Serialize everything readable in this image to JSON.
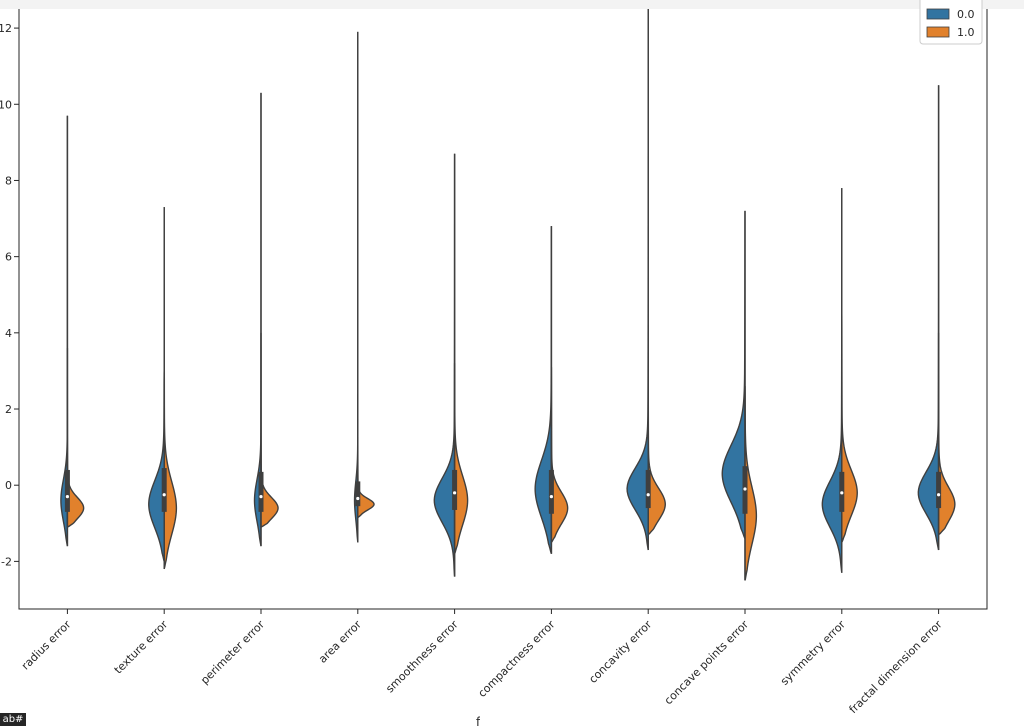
{
  "chart_data": {
    "type": "violin",
    "split": true,
    "title": "",
    "xlabel": "f",
    "ylabel": "",
    "ylim": [
      -3.25,
      13.0
    ],
    "yticks": [
      {
        "value": -2,
        "label": "-2"
      },
      {
        "value": 0,
        "label": "0"
      },
      {
        "value": 2,
        "label": "2"
      },
      {
        "value": 4,
        "label": "4"
      },
      {
        "value": 6,
        "label": "6"
      },
      {
        "value": 8,
        "label": "8"
      },
      {
        "value": 10,
        "label": "10"
      },
      {
        "value": 12,
        "label": "12"
      }
    ],
    "categories": [
      "radius error",
      "texture error",
      "perimeter error",
      "area error",
      "smoothness error",
      "compactness error",
      "concavity error",
      "concave points error",
      "symmetry error",
      "fractal dimension error"
    ],
    "legend": {
      "position": "top-right",
      "entries": [
        {
          "label": "0.0",
          "color": "#3274a1"
        },
        {
          "label": "1.0",
          "color": "#e1812c"
        }
      ]
    },
    "series": [
      {
        "label": "0.0",
        "color": "#3274a1",
        "side": "left",
        "violins": [
          {
            "min": -1.6,
            "max": 9.7,
            "mode": -0.4,
            "width": 0.08,
            "spread": 0.55,
            "q1": -0.7,
            "median": -0.3,
            "q3": 0.4
          },
          {
            "min": -2.0,
            "max": 3.0,
            "mode": -0.5,
            "width": 0.19,
            "spread": 0.62,
            "q1": -0.7,
            "median": -0.25,
            "q3": 0.45
          },
          {
            "min": -1.6,
            "max": 10.3,
            "mode": -0.4,
            "width": 0.08,
            "spread": 0.55,
            "q1": -0.7,
            "median": -0.3,
            "q3": 0.35
          },
          {
            "min": -1.5,
            "max": 11.9,
            "mode": -0.4,
            "width": 0.04,
            "spread": 0.5,
            "q1": -0.55,
            "median": -0.35,
            "q3": 0.1
          },
          {
            "min": -2.4,
            "max": 8.7,
            "mode": -0.4,
            "width": 0.25,
            "spread": 0.58,
            "q1": -0.65,
            "median": -0.2,
            "q3": 0.4
          },
          {
            "min": -1.8,
            "max": 6.8,
            "mode": -0.1,
            "width": 0.2,
            "spread": 0.75,
            "q1": -0.75,
            "median": -0.3,
            "q3": 0.4
          },
          {
            "min": -1.7,
            "max": 12.7,
            "mode": -0.1,
            "width": 0.26,
            "spread": 0.55,
            "q1": -0.6,
            "median": -0.25,
            "q3": 0.4
          },
          {
            "min": -1.4,
            "max": 7.2,
            "mode": 0.3,
            "width": 0.28,
            "spread": 0.75,
            "q1": -0.75,
            "median": -0.1,
            "q3": 0.5
          },
          {
            "min": -2.3,
            "max": 7.8,
            "mode": -0.5,
            "width": 0.24,
            "spread": 0.6,
            "q1": -0.7,
            "median": -0.2,
            "q3": 0.35
          },
          {
            "min": -1.7,
            "max": 10.5,
            "mode": -0.2,
            "width": 0.25,
            "spread": 0.55,
            "q1": -0.6,
            "median": -0.25,
            "q3": 0.35
          }
        ]
      },
      {
        "label": "1.0",
        "color": "#e1812c",
        "side": "right",
        "violins": [
          {
            "min": -1.1,
            "max": 3.6,
            "mode": -0.6,
            "width": 0.2,
            "spread": 0.28
          },
          {
            "min": -2.2,
            "max": 7.3,
            "mode": -0.6,
            "width": 0.15,
            "spread": 0.7
          },
          {
            "min": -1.1,
            "max": 4.0,
            "mode": -0.6,
            "width": 0.21,
            "spread": 0.28
          },
          {
            "min": -0.85,
            "max": 2.4,
            "mode": -0.5,
            "width": 0.2,
            "spread": 0.15
          },
          {
            "min": -1.8,
            "max": 3.2,
            "mode": -0.4,
            "width": 0.16,
            "spread": 0.65
          },
          {
            "min": -1.5,
            "max": 3.1,
            "mode": -0.6,
            "width": 0.2,
            "spread": 0.42
          },
          {
            "min": -1.3,
            "max": 4.2,
            "mode": -0.5,
            "width": 0.21,
            "spread": 0.42
          },
          {
            "min": -2.5,
            "max": 2.6,
            "mode": -0.8,
            "width": 0.14,
            "spread": 0.75
          },
          {
            "min": -1.5,
            "max": 4.5,
            "mode": -0.2,
            "width": 0.19,
            "spread": 0.6
          },
          {
            "min": -1.3,
            "max": 4.0,
            "mode": -0.5,
            "width": 0.2,
            "spread": 0.45
          }
        ]
      }
    ]
  },
  "notebook": {
    "corner_badge": "ab#"
  }
}
